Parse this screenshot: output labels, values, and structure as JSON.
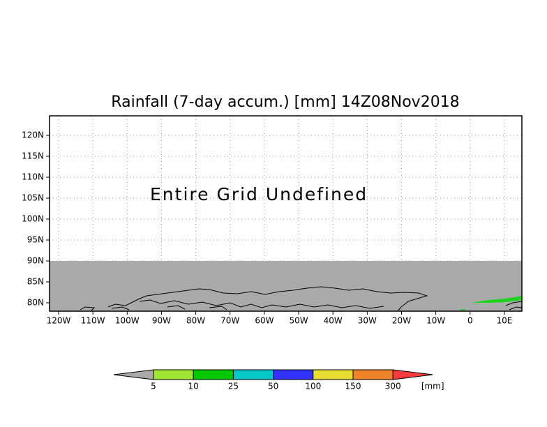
{
  "title": "Rainfall (7-day accum.) [mm] 14Z08Nov2018",
  "annotation": "Entire Grid Undefined",
  "lat_labels": [
    "120N",
    "115N",
    "110N",
    "105N",
    "100N",
    "95N",
    "90N",
    "85N",
    "80N"
  ],
  "lon_labels": [
    "120W",
    "110W",
    "100W",
    "90W",
    "80W",
    "70W",
    "60W",
    "50W",
    "40W",
    "30W",
    "20W",
    "10W",
    "0",
    "10E"
  ],
  "colorbar": {
    "labels": [
      "5",
      "10",
      "25",
      "50",
      "100",
      "150",
      "300"
    ],
    "unit": "[mm]"
  }
}
